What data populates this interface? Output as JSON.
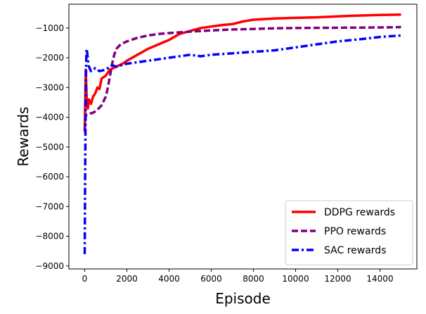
{
  "chart_data": {
    "type": "line",
    "title": "",
    "xlabel": "Episode",
    "ylabel": "Rewards",
    "xlim": [
      -750,
      15750
    ],
    "ylim": [
      -9100,
      -200
    ],
    "xticks": [
      0,
      2000,
      4000,
      6000,
      8000,
      10000,
      12000,
      14000
    ],
    "yticks": [
      -9000,
      -8000,
      -7000,
      -6000,
      -5000,
      -4000,
      -3000,
      -2000,
      -1000
    ],
    "grid": false,
    "legend_position": "bottom-right",
    "series": [
      {
        "name": "DDPG rewards",
        "color": "#ff0000",
        "line_style": "solid",
        "x": [
          0,
          50,
          100,
          150,
          200,
          300,
          400,
          500,
          600,
          700,
          800,
          1000,
          1200,
          1500,
          1800,
          2000,
          2500,
          3000,
          3500,
          4000,
          4500,
          5000,
          5500,
          6000,
          6500,
          7000,
          7500,
          8000,
          9000,
          10000,
          11000,
          12000,
          13000,
          14000,
          15000
        ],
        "y": [
          -4500,
          -2400,
          -3500,
          -3700,
          -3400,
          -3550,
          -3300,
          -3200,
          -3000,
          -3050,
          -2700,
          -2600,
          -2400,
          -2300,
          -2200,
          -2100,
          -1900,
          -1700,
          -1550,
          -1400,
          -1200,
          -1100,
          -1000,
          -950,
          -900,
          -870,
          -780,
          -720,
          -680,
          -660,
          -640,
          -610,
          -580,
          -560,
          -550
        ]
      },
      {
        "name": "PPO rewards",
        "color": "#800080",
        "line_style": "dashed",
        "x": [
          0,
          50,
          100,
          200,
          400,
          600,
          800,
          1000,
          1100,
          1200,
          1300,
          1400,
          1500,
          1700,
          2000,
          2500,
          3000,
          3500,
          4000,
          5000,
          6000,
          7000,
          8000,
          9000,
          10000,
          12000,
          14000,
          15000
        ],
        "y": [
          -4400,
          -3950,
          -3900,
          -3880,
          -3850,
          -3750,
          -3600,
          -3300,
          -3000,
          -2600,
          -2200,
          -1900,
          -1700,
          -1550,
          -1450,
          -1330,
          -1250,
          -1200,
          -1170,
          -1120,
          -1080,
          -1050,
          -1030,
          -1010,
          -1000,
          -990,
          -980,
          -970
        ]
      },
      {
        "name": "SAC rewards",
        "color": "#0000ff",
        "line_style": "dashdot",
        "x": [
          0,
          20,
          40,
          60,
          80,
          100,
          150,
          200,
          300,
          500,
          700,
          1000,
          1300,
          1500,
          2000,
          2500,
          3000,
          3500,
          4000,
          4500,
          5000,
          5500,
          6000,
          7000,
          8000,
          9000,
          10000,
          11000,
          12000,
          13000,
          14000,
          15000
        ],
        "y": [
          -8600,
          -6000,
          -4000,
          -2600,
          -1800,
          -1700,
          -2050,
          -2300,
          -2450,
          -2350,
          -2450,
          -2400,
          -2250,
          -2300,
          -2200,
          -2150,
          -2100,
          -2050,
          -2000,
          -1950,
          -1900,
          -1950,
          -1900,
          -1850,
          -1800,
          -1750,
          -1650,
          -1550,
          -1450,
          -1380,
          -1300,
          -1250
        ]
      }
    ]
  }
}
